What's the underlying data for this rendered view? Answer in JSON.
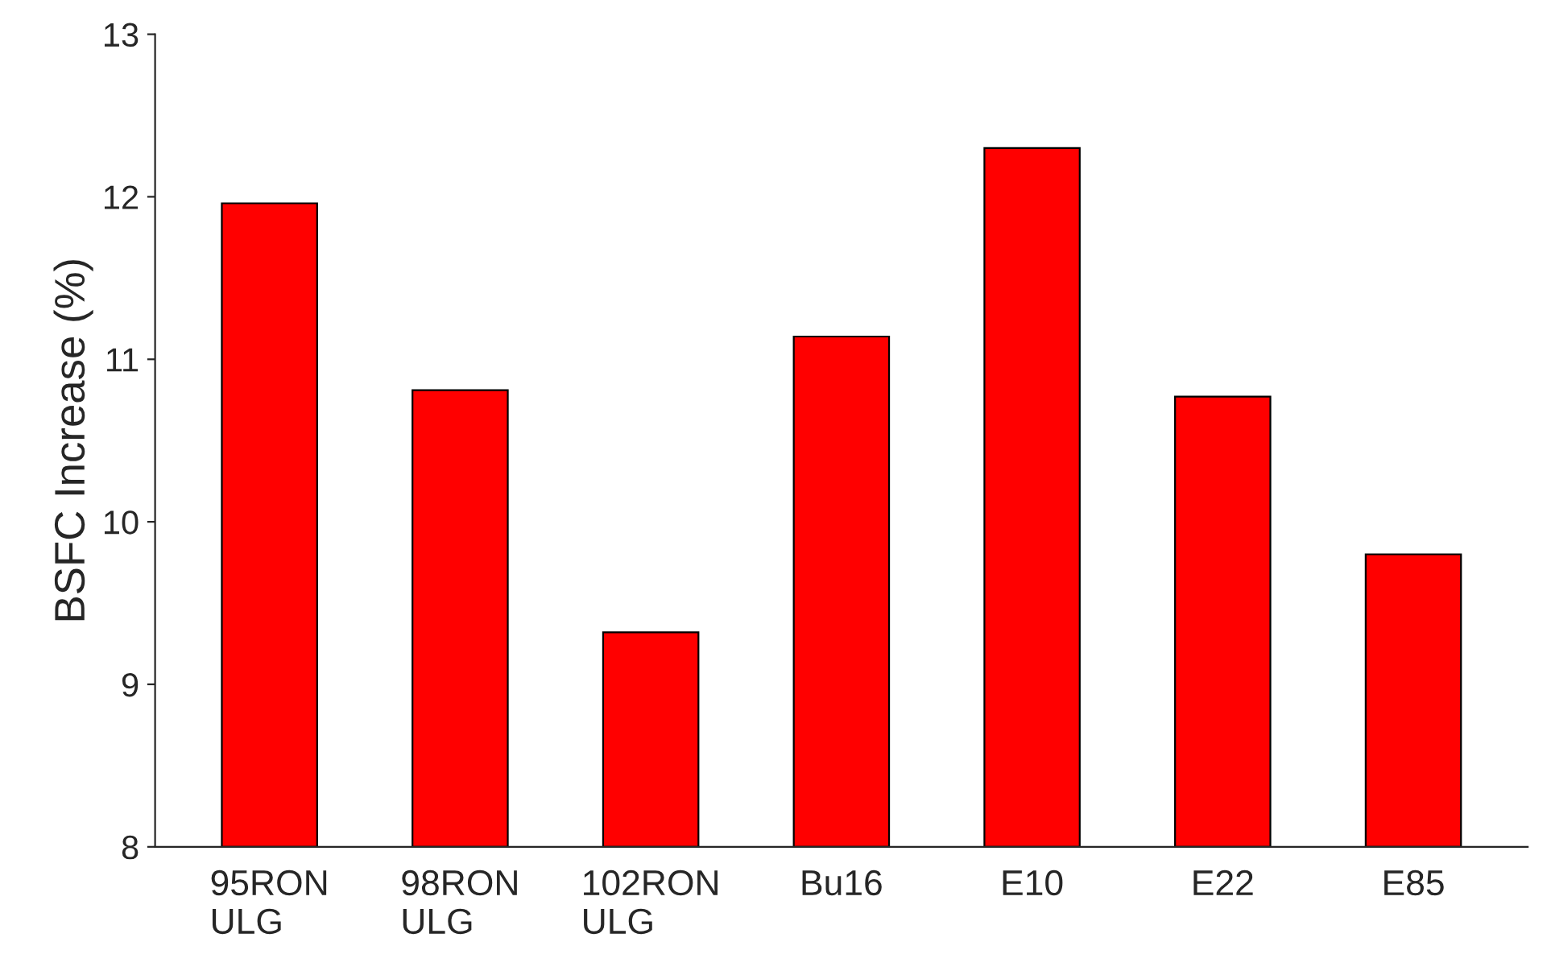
{
  "chart_data": {
    "type": "bar",
    "ylabel": "BSFC Increase (%)",
    "categories": [
      "95RON\nULG",
      "98RON\nULG",
      "102RON\nULG",
      "Bu16",
      "E10",
      "E22",
      "E85"
    ],
    "values": [
      11.96,
      10.81,
      9.32,
      11.14,
      12.3,
      10.77,
      9.8
    ],
    "color": "#ff0000",
    "ylim": [
      8,
      13
    ],
    "yticks": [
      8,
      9,
      10,
      11,
      12,
      13
    ],
    "grid": false,
    "legend": false
  }
}
